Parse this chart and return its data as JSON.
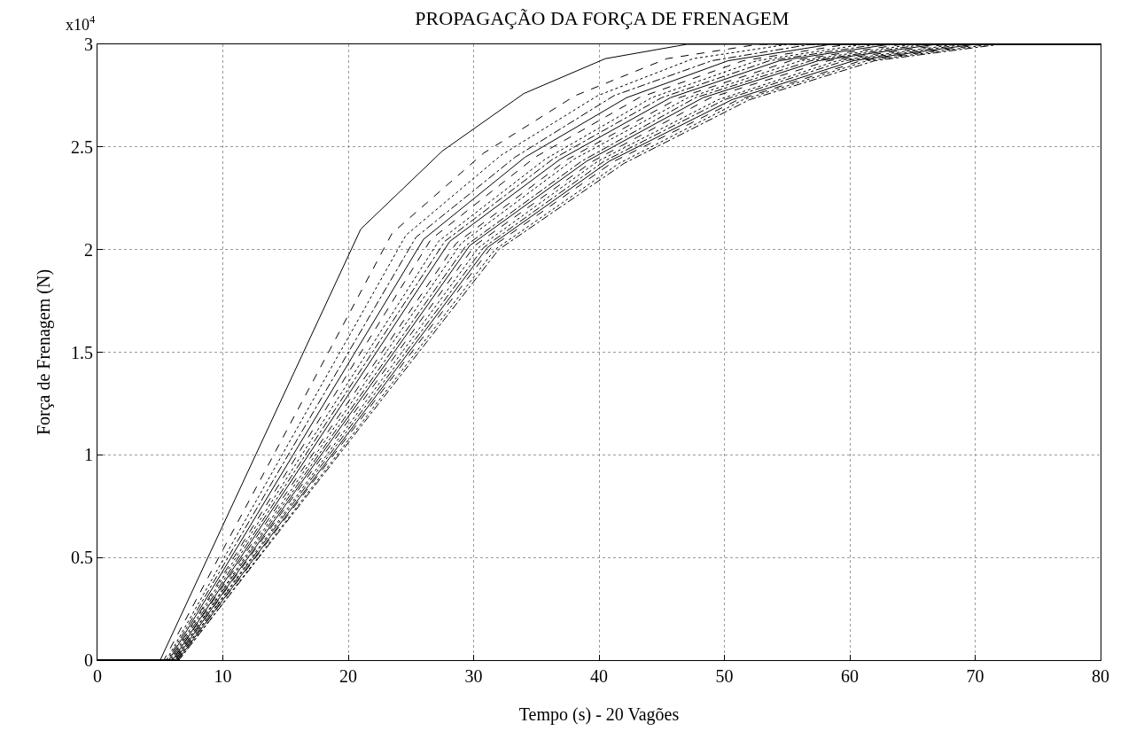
{
  "chart_data": {
    "type": "line",
    "title": "PROPAGAÇÃO DA FORÇA DE FRENAGEM",
    "xlabel": "Tempo (s) - 20 Vagões",
    "ylabel": "Força de Frenagem (N)",
    "annotations": [
      "x10$^{4}$"
    ],
    "xlim": [
      0,
      80
    ],
    "xticks": [
      0,
      10,
      20,
      30,
      40,
      50,
      60,
      70,
      80
    ],
    "ylim": [
      0,
      3
    ],
    "yticks": [
      0,
      0.5,
      1,
      1.5,
      2,
      2.5,
      3
    ],
    "grid": true,
    "marker": "none",
    "series": [
      {
        "color": "#000000",
        "line_style": "solid",
        "x": [
          0,
          5.0,
          21.0,
          27.5,
          34.0,
          40.5,
          47.0,
          80
        ],
        "values": [
          0,
          0,
          2.1,
          2.48,
          2.76,
          2.93,
          3,
          3
        ]
      },
      {
        "color": "#000000",
        "line_style": "dashed",
        "x": [
          0,
          5.3,
          23.5,
          30.8,
          38.1,
          45.4,
          52.7,
          80
        ],
        "values": [
          0,
          0,
          2.08,
          2.47,
          2.75,
          2.93,
          3,
          3
        ]
      },
      {
        "color": "#000000",
        "line_style": "dotted",
        "x": [
          0,
          5.5,
          24.6,
          32.2,
          39.9,
          47.5,
          55.1,
          80
        ],
        "values": [
          0,
          0,
          2.07,
          2.46,
          2.75,
          2.93,
          3,
          3
        ]
      },
      {
        "color": "#000000",
        "line_style": "dashdot",
        "x": [
          0,
          5.6,
          25.4,
          33.3,
          41.2,
          49.0,
          56.9,
          80
        ],
        "values": [
          0,
          0,
          2.06,
          2.45,
          2.75,
          2.92,
          3,
          3
        ]
      },
      {
        "color": "#000000",
        "line_style": "solid",
        "x": [
          0,
          5.7,
          26.0,
          34.1,
          42.2,
          50.3,
          58.5,
          80
        ],
        "values": [
          0,
          0,
          2.05,
          2.45,
          2.74,
          2.92,
          3,
          3
        ]
      },
      {
        "color": "#000000",
        "line_style": "dashed",
        "x": [
          0,
          5.8,
          26.6,
          34.9,
          43.2,
          51.5,
          59.8,
          80
        ],
        "values": [
          0,
          0,
          2.05,
          2.45,
          2.74,
          2.92,
          3,
          3
        ]
      },
      {
        "color": "#000000",
        "line_style": "dotted",
        "x": [
          0,
          5.8,
          27.2,
          35.7,
          44.2,
          52.6,
          61.1,
          80
        ],
        "values": [
          0,
          0,
          2.04,
          2.44,
          2.74,
          2.92,
          3,
          3
        ]
      },
      {
        "color": "#000000",
        "line_style": "dashdot",
        "x": [
          0,
          5.9,
          27.7,
          36.3,
          45.0,
          53.6,
          62.2,
          80
        ],
        "values": [
          0,
          0,
          2.04,
          2.44,
          2.74,
          2.92,
          3,
          3
        ]
      },
      {
        "color": "#000000",
        "line_style": "solid",
        "x": [
          0,
          6.0,
          28.1,
          36.9,
          45.7,
          54.4,
          63.2,
          80
        ],
        "values": [
          0,
          0,
          2.04,
          2.44,
          2.74,
          2.92,
          3,
          3
        ]
      },
      {
        "color": "#000000",
        "line_style": "dashed",
        "x": [
          0,
          6.0,
          28.6,
          37.5,
          46.4,
          55.3,
          64.2,
          80
        ],
        "values": [
          0,
          0,
          2.03,
          2.44,
          2.74,
          2.92,
          3,
          3
        ]
      },
      {
        "color": "#000000",
        "line_style": "dotted",
        "x": [
          0,
          6.1,
          29.0,
          38.0,
          47.1,
          56.1,
          65.1,
          80
        ],
        "values": [
          0,
          0,
          2.03,
          2.44,
          2.74,
          2.92,
          3,
          3
        ]
      },
      {
        "color": "#000000",
        "line_style": "dashdot",
        "x": [
          0,
          6.1,
          29.4,
          38.6,
          47.7,
          56.9,
          66.0,
          80
        ],
        "values": [
          0,
          0,
          2.02,
          2.43,
          2.74,
          2.92,
          3,
          3
        ]
      },
      {
        "color": "#000000",
        "line_style": "solid",
        "x": [
          0,
          6.2,
          29.7,
          39.0,
          48.3,
          57.5,
          66.9,
          80
        ],
        "values": [
          0,
          0,
          2.02,
          2.43,
          2.74,
          2.92,
          3,
          3
        ]
      },
      {
        "color": "#000000",
        "line_style": "dashed",
        "x": [
          0,
          6.2,
          30.1,
          39.5,
          48.9,
          58.3,
          67.7,
          80
        ],
        "values": [
          0,
          0,
          2.02,
          2.43,
          2.74,
          2.92,
          3,
          3
        ]
      },
      {
        "color": "#000000",
        "line_style": "dotted",
        "x": [
          0,
          6.3,
          30.4,
          39.9,
          49.5,
          59.0,
          68.5,
          80
        ],
        "values": [
          0,
          0,
          2.01,
          2.43,
          2.73,
          2.92,
          3,
          3
        ]
      },
      {
        "color": "#000000",
        "line_style": "dashdot",
        "x": [
          0,
          6.3,
          30.8,
          40.4,
          50.0,
          59.6,
          69.2,
          80
        ],
        "values": [
          0,
          0,
          2.01,
          2.43,
          2.73,
          2.92,
          3,
          3
        ]
      },
      {
        "color": "#000000",
        "line_style": "solid",
        "x": [
          0,
          6.4,
          31.1,
          40.8,
          50.6,
          60.3,
          70.0,
          80
        ],
        "values": [
          0,
          0,
          2.01,
          2.43,
          2.73,
          2.92,
          3,
          3
        ]
      },
      {
        "color": "#000000",
        "line_style": "dashed",
        "x": [
          0,
          6.4,
          31.4,
          41.2,
          51.1,
          60.9,
          70.7,
          80
        ],
        "values": [
          0,
          0,
          2.01,
          2.43,
          2.73,
          2.92,
          3,
          3
        ]
      },
      {
        "color": "#000000",
        "line_style": "dotted",
        "x": [
          0,
          6.5,
          31.7,
          41.6,
          51.5,
          61.4,
          71.3,
          80
        ],
        "values": [
          0,
          0,
          2.0,
          2.42,
          2.73,
          2.92,
          3,
          3
        ]
      },
      {
        "color": "#000000",
        "line_style": "dashdot",
        "x": [
          0,
          6.5,
          32.0,
          42.0,
          52.0,
          62.0,
          72.0,
          80
        ],
        "values": [
          0,
          0,
          2.0,
          2.42,
          2.73,
          2.92,
          3,
          3
        ]
      }
    ]
  }
}
